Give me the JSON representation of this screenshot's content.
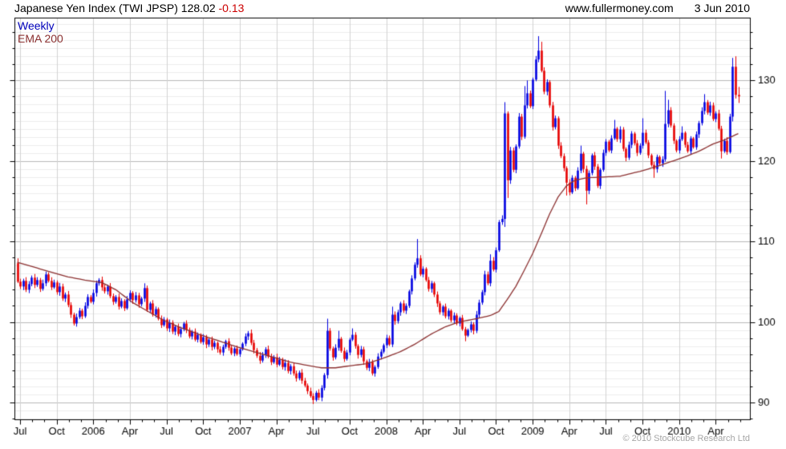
{
  "header": {
    "instrument": "Japanese Yen Index (TWI JPSP)",
    "last": "128.02",
    "change": "-0.13",
    "site": "www.fullermoney.com",
    "date": "3 Jun 2010"
  },
  "legend": {
    "series": "Weekly",
    "overlay": "EMA 200"
  },
  "footer": {
    "copyright": "© 2010 Stockcube Research Ltd"
  },
  "colors": {
    "up": "#0000e0",
    "down": "#e60000",
    "ema": "#8b3030",
    "grid_minor": "#ececec",
    "grid_major": "#b9b9b9",
    "grid_vert": "#d2d2d2",
    "axis": "#000000",
    "title": "#000000",
    "change": "#cc0000",
    "legend_series": "#0000bb",
    "copyright": "#a6a6a6"
  },
  "chart_data": {
    "type": "candlestick+line",
    "title": "Japanese Yen Index (TWI JPSP)",
    "timeframe": "Weekly",
    "overlay": "EMA 200",
    "ylim": [
      87.9,
      137.8
    ],
    "y_major_ticks": [
      90,
      100,
      110,
      120,
      130
    ],
    "y_minor_step": 2,
    "grid_step": 1,
    "x_tick_labels": [
      "Jul",
      "Oct",
      "2006",
      "Apr",
      "Jul",
      "Oct",
      "2007",
      "Apr",
      "Jul",
      "Oct",
      "2008",
      "Apr",
      "Jul",
      "Oct",
      "2009",
      "Apr",
      "Jul",
      "Oct",
      "2010",
      "Apr"
    ],
    "x_tick_weeks": [
      1,
      14,
      27,
      40,
      53,
      66,
      79,
      92,
      105,
      118,
      131,
      144,
      157,
      170,
      183,
      196,
      209,
      222,
      235,
      248
    ],
    "weeks_total": 257,
    "first_open": 107.3,
    "closes": [
      105.0,
      104.4,
      105.1,
      104.0,
      104.7,
      105.5,
      104.6,
      105.2,
      104.1,
      104.8,
      105.9,
      105.1,
      104.3,
      104.9,
      103.7,
      104.4,
      102.9,
      103.4,
      102.1,
      100.9,
      99.8,
      100.6,
      101.4,
      100.7,
      102.0,
      103.1,
      102.5,
      103.6,
      104.8,
      105.2,
      104.3,
      103.8,
      104.4,
      103.2,
      102.5,
      103.1,
      101.9,
      102.6,
      101.7,
      102.8,
      103.6,
      102.7,
      103.3,
      102.2,
      102.9,
      104.2,
      101.5,
      102.3,
      100.9,
      101.6,
      100.4,
      99.6,
      100.3,
      99.2,
      99.9,
      98.8,
      99.4,
      98.5,
      99.1,
      99.8,
      99.0,
      98.2,
      98.8,
      97.8,
      98.4,
      97.5,
      98.1,
      97.2,
      97.8,
      96.9,
      97.4,
      96.6,
      96.2,
      96.9,
      97.6,
      96.8,
      96.1,
      96.7,
      96.0,
      96.6,
      97.3,
      98.2,
      98.6,
      97.4,
      96.5,
      95.8,
      95.2,
      95.9,
      96.6,
      95.7,
      95.0,
      95.6,
      94.7,
      95.3,
      94.4,
      94.9,
      93.9,
      94.5,
      93.6,
      93.0,
      93.7,
      92.7,
      92.1,
      91.4,
      90.8,
      90.3,
      91.2,
      90.6,
      91.8,
      93.4,
      98.9,
      96.7,
      95.6,
      96.8,
      97.9,
      96.4,
      95.4,
      96.2,
      97.8,
      98.4,
      97.0,
      95.9,
      96.6,
      95.1,
      94.3,
      95.0,
      93.6,
      94.4,
      95.7,
      96.3,
      97.1,
      98.0,
      97.2,
      100.9,
      100.1,
      101.2,
      102.3,
      101.4,
      102.0,
      103.8,
      105.4,
      107.1,
      107.9,
      105.9,
      106.6,
      105.2,
      104.1,
      104.8,
      103.4,
      102.3,
      101.2,
      101.9,
      100.7,
      101.4,
      100.2,
      100.8,
      99.8,
      100.5,
      99.1,
      98.3,
      99.0,
      99.7,
      98.9,
      100.9,
      102.4,
      103.7,
      105.9,
      104.8,
      107.6,
      106.5,
      108.9,
      112.4,
      112.8,
      125.9,
      117.6,
      121.3,
      118.9,
      121.8,
      125.5,
      123.0,
      126.9,
      128.4,
      126.8,
      130.1,
      132.6,
      133.7,
      131.2,
      128.6,
      129.8,
      126.9,
      124.2,
      125.3,
      121.9,
      120.6,
      119.1,
      117.3,
      116.1,
      117.9,
      116.6,
      118.8,
      120.9,
      119.0,
      116.3,
      118.5,
      120.7,
      119.3,
      116.9,
      118.9,
      121.0,
      122.4,
      121.3,
      122.8,
      124.0,
      122.7,
      123.9,
      121.5,
      120.4,
      122.0,
      123.4,
      122.2,
      121.0,
      121.9,
      123.5,
      122.3,
      120.7,
      119.5,
      119.0,
      120.5,
      119.7,
      120.2,
      124.6,
      126.3,
      124.4,
      122.5,
      121.3,
      122.7,
      123.5,
      122.0,
      121.2,
      122.8,
      121.7,
      123.3,
      124.7,
      126.2,
      127.3,
      126.0,
      126.9,
      125.2,
      125.9,
      124.0,
      121.2,
      122.5,
      121.1,
      125.5,
      131.7,
      128.2,
      128.02
    ],
    "extremes": [
      {
        "i": 0,
        "high": 107.9
      },
      {
        "i": 45,
        "high": 104.8
      },
      {
        "i": 105,
        "low": 89.8
      },
      {
        "i": 110,
        "high": 100.4
      },
      {
        "i": 114,
        "high": 98.9
      },
      {
        "i": 119,
        "high": 99.2
      },
      {
        "i": 133,
        "high": 101.9
      },
      {
        "i": 142,
        "high": 110.3
      },
      {
        "i": 159,
        "low": 97.6
      },
      {
        "i": 168,
        "high": 108.4
      },
      {
        "i": 173,
        "high": 127.3,
        "low": 111.8
      },
      {
        "i": 174,
        "low": 115.4
      },
      {
        "i": 180,
        "high": 129.3
      },
      {
        "i": 181,
        "high": 130.0
      },
      {
        "i": 185,
        "high": 135.5
      },
      {
        "i": 186,
        "high": 134.8
      },
      {
        "i": 195,
        "low": 115.7
      },
      {
        "i": 200,
        "high": 121.9
      },
      {
        "i": 202,
        "low": 114.6
      },
      {
        "i": 212,
        "high": 125.1
      },
      {
        "i": 222,
        "high": 125.3
      },
      {
        "i": 226,
        "low": 117.9
      },
      {
        "i": 230,
        "high": 128.7
      },
      {
        "i": 231,
        "high": 127.6
      },
      {
        "i": 236,
        "high": 124.3
      },
      {
        "i": 244,
        "high": 128.3
      },
      {
        "i": 250,
        "low": 120.3
      },
      {
        "i": 254,
        "high": 132.8,
        "low": 124.9
      },
      {
        "i": 255,
        "high": 133.0
      },
      {
        "i": 256,
        "high": 129.2,
        "low": 127.2
      }
    ],
    "ema_points": [
      [
        0,
        107.4
      ],
      [
        6,
        106.8
      ],
      [
        13,
        106.1
      ],
      [
        18,
        105.6
      ],
      [
        24,
        105.2
      ],
      [
        30,
        104.9
      ],
      [
        35,
        104.0
      ],
      [
        41,
        102.4
      ],
      [
        46,
        101.4
      ],
      [
        52,
        100.2
      ],
      [
        58,
        99.3
      ],
      [
        65,
        98.4
      ],
      [
        72,
        97.6
      ],
      [
        78,
        96.9
      ],
      [
        85,
        96.2
      ],
      [
        91,
        95.6
      ],
      [
        97,
        95.0
      ],
      [
        103,
        94.6
      ],
      [
        108,
        94.3
      ],
      [
        113,
        94.3
      ],
      [
        117,
        94.5
      ],
      [
        124,
        94.8
      ],
      [
        130,
        95.5
      ],
      [
        136,
        96.3
      ],
      [
        141,
        97.2
      ],
      [
        147,
        98.5
      ],
      [
        152,
        99.4
      ],
      [
        157,
        100.0
      ],
      [
        163,
        100.4
      ],
      [
        168,
        100.8
      ],
      [
        171,
        101.3
      ],
      [
        174,
        102.8
      ],
      [
        177,
        104.4
      ],
      [
        180,
        106.4
      ],
      [
        183,
        108.5
      ],
      [
        186,
        110.9
      ],
      [
        189,
        113.4
      ],
      [
        192,
        115.5
      ],
      [
        195,
        116.9
      ],
      [
        198,
        117.6
      ],
      [
        202,
        117.9
      ],
      [
        208,
        118.0
      ],
      [
        214,
        118.1
      ],
      [
        221,
        118.7
      ],
      [
        227,
        119.3
      ],
      [
        232,
        119.9
      ],
      [
        237,
        120.5
      ],
      [
        242,
        121.2
      ],
      [
        247,
        122.1
      ],
      [
        251,
        122.6
      ],
      [
        256,
        123.4
      ]
    ]
  }
}
